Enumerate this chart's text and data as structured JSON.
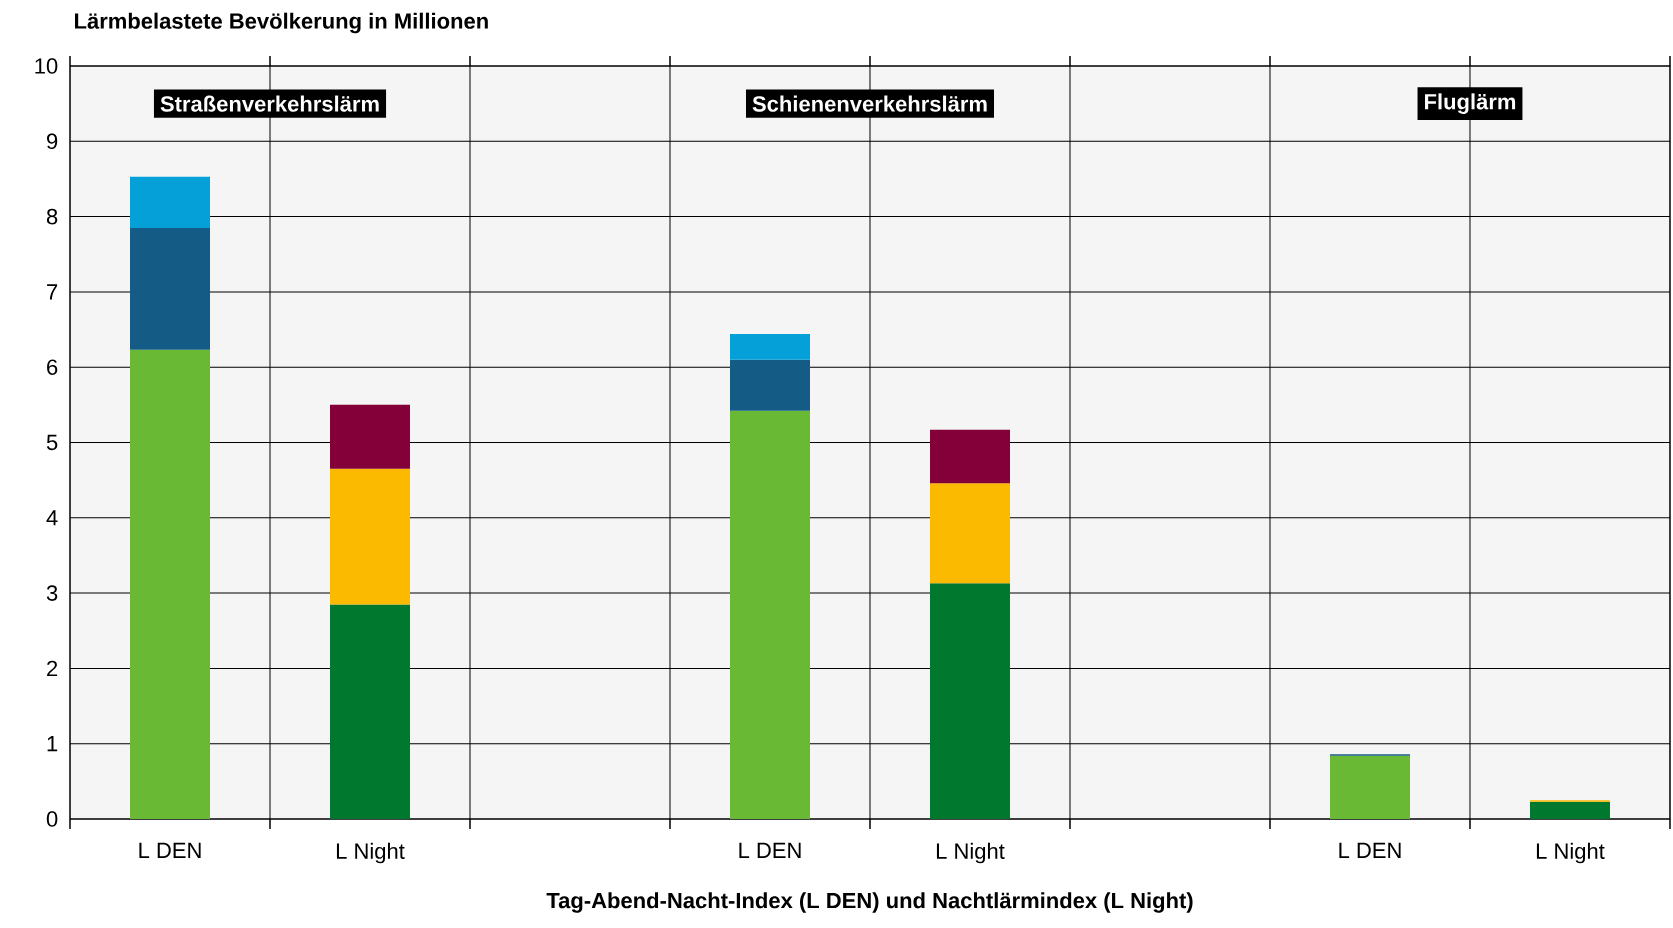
{
  "chart_data": {
    "type": "bar",
    "stacked": true,
    "ylabel": "Lärmbelastete Bevölkerung in Millionen",
    "xlabel": "Tag-Abend-Nacht-Index (L DEN) und Nachtlärmindex (L Night)",
    "categories": [
      "L DEN",
      "L Night",
      null,
      "L DEN",
      "L Night",
      null,
      "L DEN",
      "L Night"
    ],
    "series": [
      {
        "color": "#6ab934",
        "values": [
          6.23,
          null,
          null,
          5.42,
          null,
          null,
          0.84,
          null
        ]
      },
      {
        "color": "#145c86",
        "values": [
          1.62,
          null,
          null,
          0.68,
          null,
          null,
          0.02,
          null
        ]
      },
      {
        "color": "#06a0d8",
        "values": [
          0.68,
          null,
          null,
          0.34,
          null,
          null,
          null,
          null
        ]
      },
      {
        "color": "#00782e",
        "values": [
          null,
          2.85,
          null,
          null,
          3.13,
          null,
          null,
          0.23
        ]
      },
      {
        "color": "#fbb900",
        "values": [
          null,
          1.8,
          null,
          null,
          1.33,
          null,
          null,
          0.02
        ]
      },
      {
        "color": "#830038",
        "values": [
          null,
          0.85,
          null,
          null,
          0.71,
          null,
          null,
          null
        ]
      }
    ],
    "ylim": [
      0,
      10
    ],
    "yticks": [
      0,
      1,
      2,
      3,
      4,
      5,
      6,
      7,
      8,
      9,
      10
    ],
    "grid": true,
    "annotations": [
      "Straßenverkehrslärm",
      "Schienenverkehrslärm",
      "Fluglärm"
    ]
  }
}
